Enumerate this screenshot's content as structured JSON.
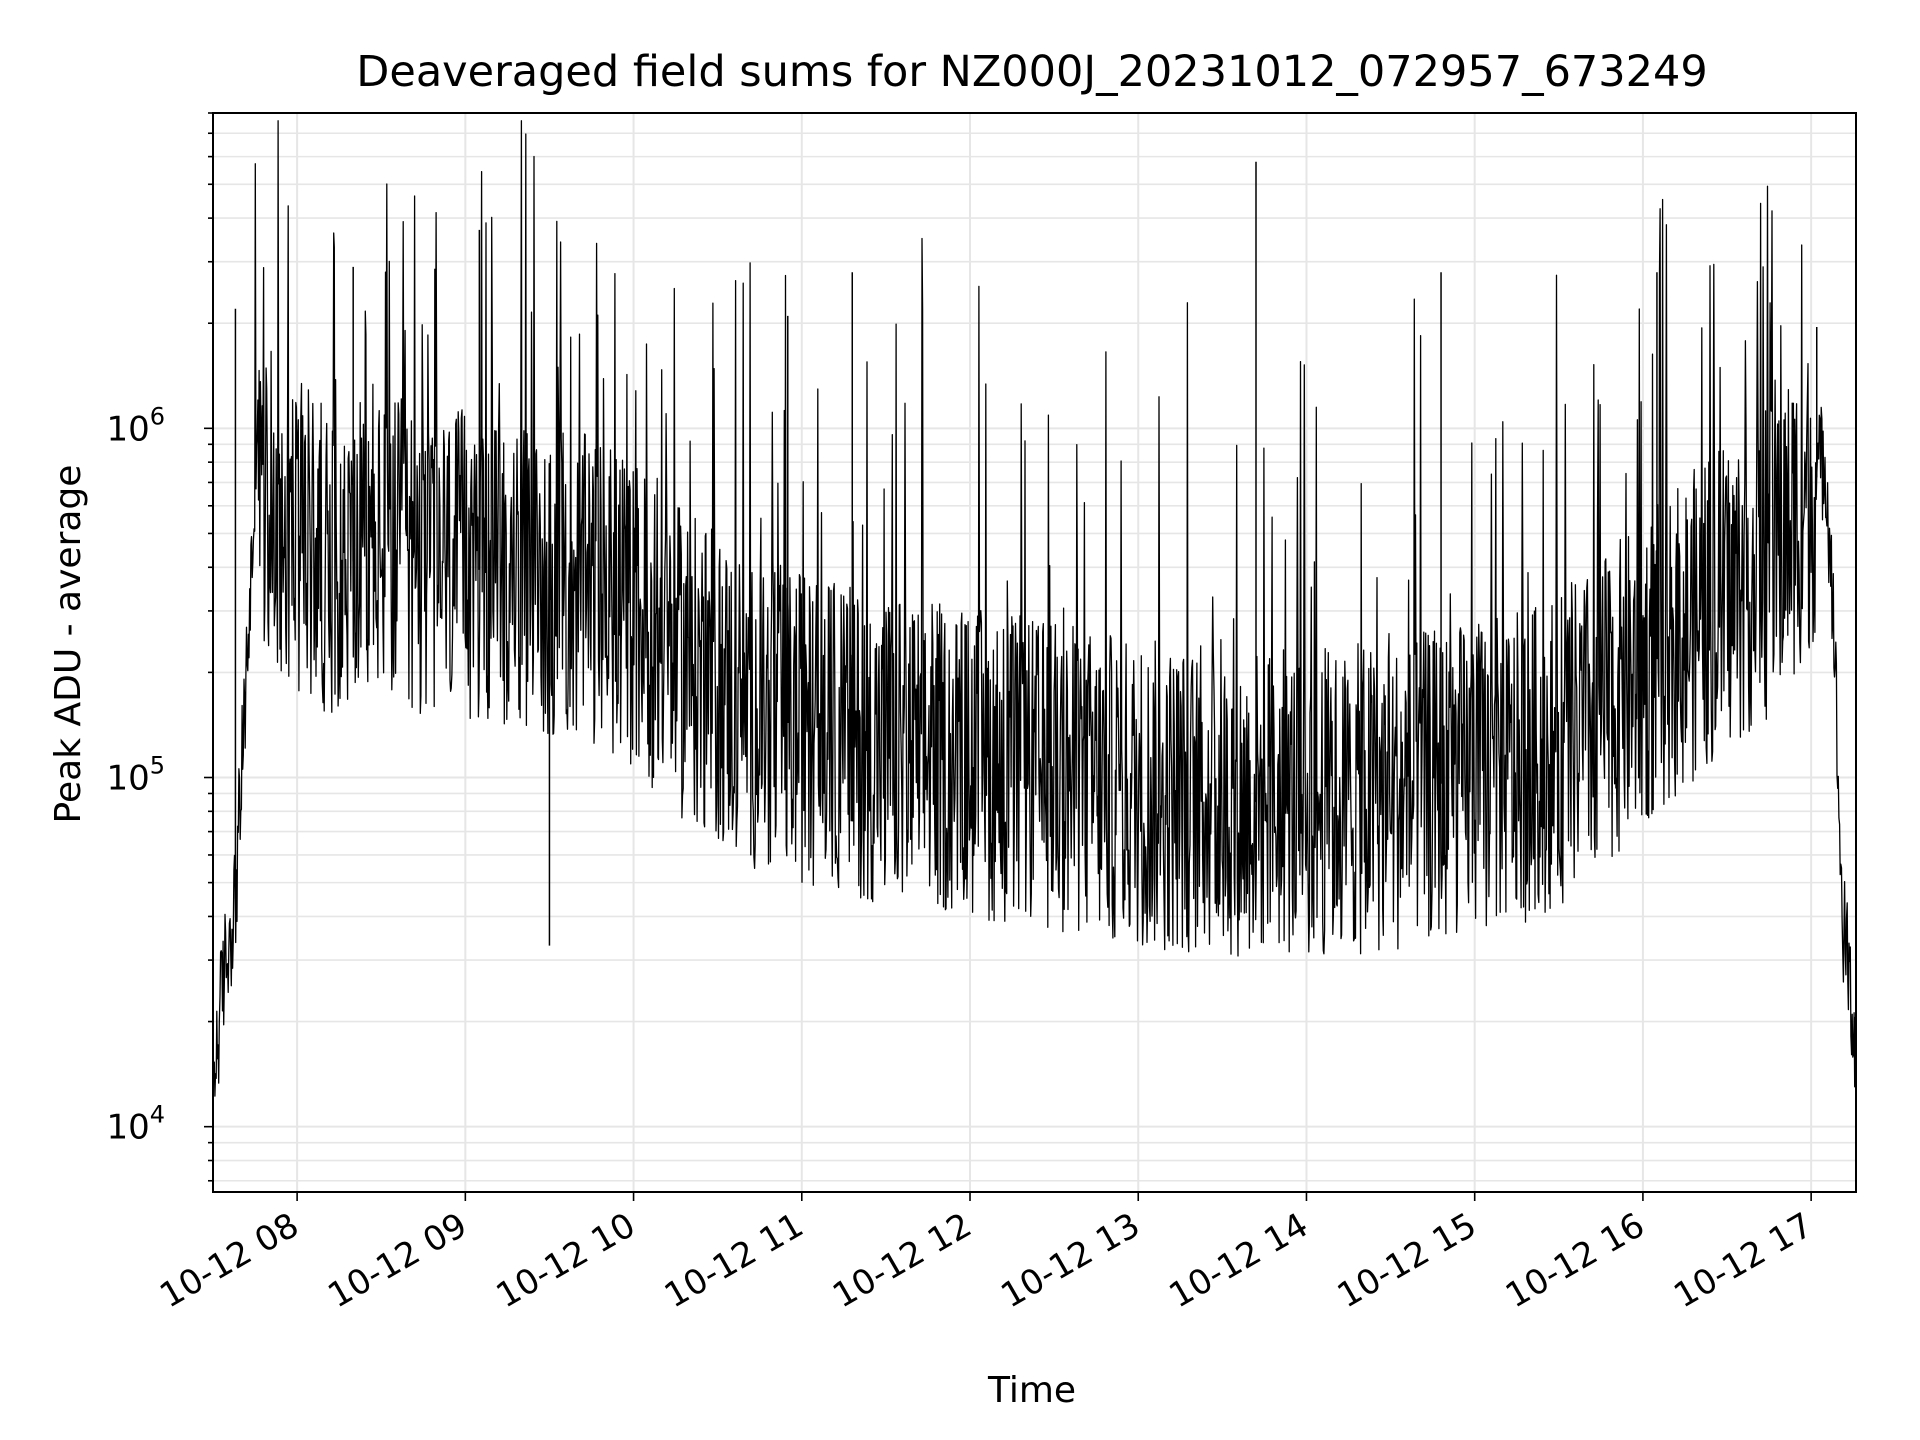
{
  "chart_data": {
    "type": "line",
    "title": "Deaveraged field sums for NZ000J_20231012_072957_673249",
    "xlabel": "Time",
    "ylabel": "Peak ADU - average",
    "y_scale": "log",
    "xlim": [
      "2023-10-12 07:30",
      "2023-10-12 17:16"
    ],
    "ylim": [
      6500,
      8000000
    ],
    "x_ticks": [
      "10-12 08",
      "10-12 09",
      "10-12 10",
      "10-12 11",
      "10-12 12",
      "10-12 13",
      "10-12 14",
      "10-12 15",
      "10-12 16",
      "10-12 17"
    ],
    "y_ticks": [
      {
        "base": "10",
        "exp": "4",
        "value": 10000
      },
      {
        "base": "10",
        "exp": "5",
        "value": 100000
      },
      {
        "base": "10",
        "exp": "6",
        "value": 1000000
      }
    ],
    "grid": true,
    "line_color": "#000000",
    "grid_color": "#e6e6e6",
    "series": [
      {
        "x": [
          "2023-10-12 07:30",
          "2023-10-12 07:34",
          "2023-10-12 07:38",
          "2023-10-12 07:42",
          "2023-10-12 07:45",
          "2023-10-12 07:50",
          "2023-10-12 08:00",
          "2023-10-12 08:15",
          "2023-10-12 08:30",
          "2023-10-12 08:45",
          "2023-10-12 09:00",
          "2023-10-12 09:15",
          "2023-10-12 09:30",
          "2023-10-12 09:45",
          "2023-10-12 10:00",
          "2023-10-12 10:15",
          "2023-10-12 10:30",
          "2023-10-12 10:45",
          "2023-10-12 11:00",
          "2023-10-12 11:15",
          "2023-10-12 11:30",
          "2023-10-12 11:45",
          "2023-10-12 12:00",
          "2023-10-12 12:15",
          "2023-10-12 12:30",
          "2023-10-12 12:45",
          "2023-10-12 13:00",
          "2023-10-12 13:15",
          "2023-10-12 13:30",
          "2023-10-12 13:45",
          "2023-10-12 14:00",
          "2023-10-12 14:15",
          "2023-10-12 14:30",
          "2023-10-12 14:45",
          "2023-10-12 15:00",
          "2023-10-12 15:15",
          "2023-10-12 15:30",
          "2023-10-12 15:45",
          "2023-10-12 16:00",
          "2023-10-12 16:15",
          "2023-10-12 16:30",
          "2023-10-12 16:45",
          "2023-10-12 17:00",
          "2023-10-12 17:05",
          "2023-10-12 17:08",
          "2023-10-12 17:11",
          "2023-10-12 17:14",
          "2023-10-12 17:16"
        ],
        "y": [
          13000,
          28000,
          45000,
          200000,
          650000,
          600000,
          500000,
          400000,
          450000,
          420000,
          400000,
          380000,
          360000,
          340000,
          300000,
          220000,
          180000,
          150000,
          140000,
          130000,
          120000,
          115000,
          110000,
          105000,
          100000,
          95000,
          90000,
          88000,
          85000,
          85000,
          85000,
          85000,
          88000,
          95000,
          100000,
          105000,
          120000,
          150000,
          200000,
          260000,
          330000,
          420000,
          650000,
          850000,
          300000,
          40000,
          25000,
          15000
        ],
        "spikes": [
          {
            "x": "2023-10-12 07:38",
            "y": 2200000
          },
          {
            "x": "2023-10-12 08:20",
            "y": 2900000
          },
          {
            "x": "2023-10-12 09:05",
            "y": 3700000
          },
          {
            "x": "2023-10-12 09:30",
            "y": 33000
          },
          {
            "x": "2023-10-12 10:55",
            "y": 2100000
          },
          {
            "x": "2023-10-12 11:18",
            "y": 2800000
          },
          {
            "x": "2023-10-12 13:42",
            "y": 5800000
          },
          {
            "x": "2023-10-12 14:48",
            "y": 2800000
          },
          {
            "x": "2023-10-12 16:05",
            "y": 2800000
          },
          {
            "x": "2023-10-12 17:02",
            "y": 1950000
          }
        ]
      }
    ]
  }
}
